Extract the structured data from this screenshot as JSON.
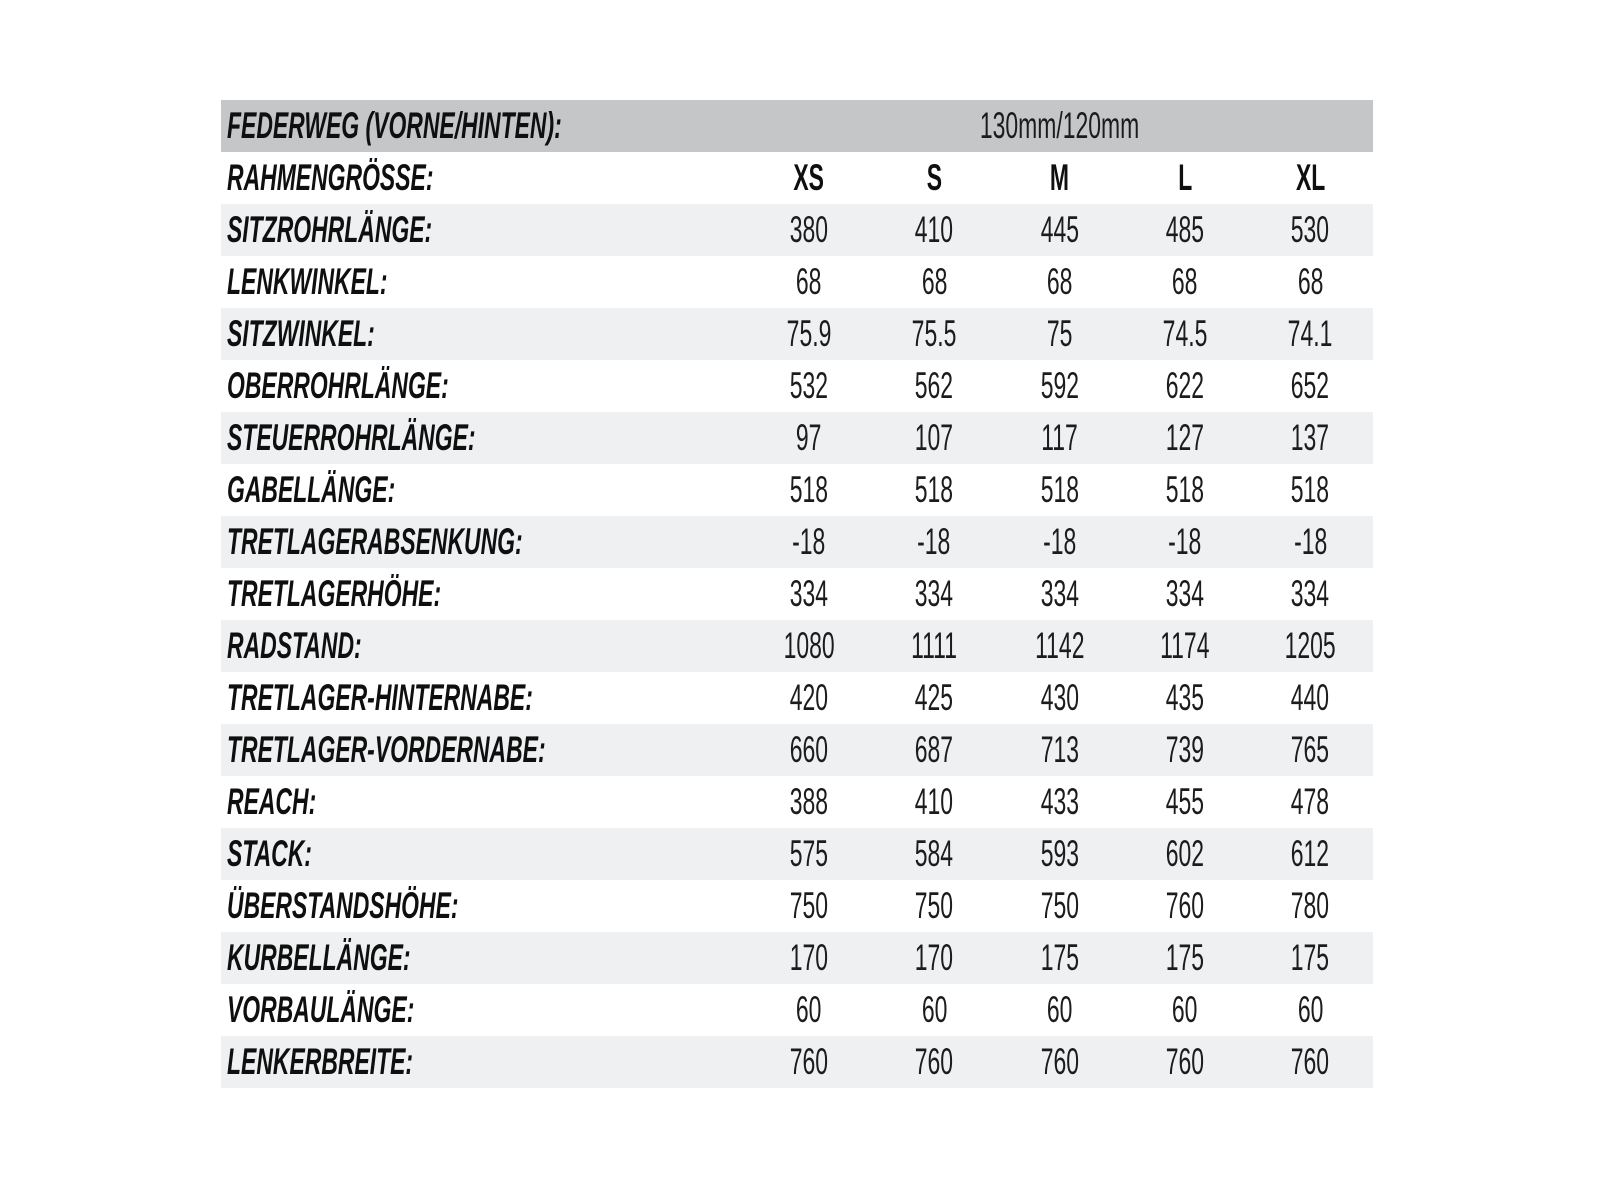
{
  "colors": {
    "header_bar_bg": "#c5c6c8",
    "stripe_bg": "#eff0f1",
    "row_bg": "#ffffff",
    "label_text": "#0f0f0f",
    "value_text": "#1c1c1c"
  },
  "chart_data": {
    "type": "table",
    "title": "Bike frame geometry specification table (German)",
    "header_row": {
      "label": "FEDERWEG (VORNE/HINTEN):",
      "value": "130mm/120mm"
    },
    "column_header": {
      "label": "RAHMENGRÖSSE:",
      "columns": [
        "XS",
        "S",
        "M",
        "L",
        "XL"
      ]
    },
    "rows": [
      {
        "label": "SITZROHRLÄNGE:",
        "values": [
          "380",
          "410",
          "445",
          "485",
          "530"
        ]
      },
      {
        "label": "LENKWINKEL:",
        "values": [
          "68",
          "68",
          "68",
          "68",
          "68"
        ]
      },
      {
        "label": "SITZWINKEL:",
        "values": [
          "75.9",
          "75.5",
          "75",
          "74.5",
          "74.1"
        ]
      },
      {
        "label": "OBERROHRLÄNGE:",
        "values": [
          "532",
          "562",
          "592",
          "622",
          "652"
        ]
      },
      {
        "label": "STEUERROHRLÄNGE:",
        "values": [
          "97",
          "107",
          "117",
          "127",
          "137"
        ]
      },
      {
        "label": "GABELLÄNGE:",
        "values": [
          "518",
          "518",
          "518",
          "518",
          "518"
        ]
      },
      {
        "label": "TRETLAGERABSENKUNG:",
        "values": [
          "-18",
          "-18",
          "-18",
          "-18",
          "-18"
        ]
      },
      {
        "label": "TRETLAGERHÖHE:",
        "values": [
          "334",
          "334",
          "334",
          "334",
          "334"
        ]
      },
      {
        "label": "RADSTAND:",
        "values": [
          "1080",
          "1111",
          "1142",
          "1174",
          "1205"
        ]
      },
      {
        "label": "TRETLAGER-HINTERNABE:",
        "values": [
          "420",
          "425",
          "430",
          "435",
          "440"
        ]
      },
      {
        "label": "TRETLAGER-VORDERNABE:",
        "values": [
          "660",
          "687",
          "713",
          "739",
          "765"
        ]
      },
      {
        "label": "REACH:",
        "values": [
          "388",
          "410",
          "433",
          "455",
          "478"
        ]
      },
      {
        "label": "STACK:",
        "values": [
          "575",
          "584",
          "593",
          "602",
          "612"
        ]
      },
      {
        "label": "ÜBERSTANDSHÖHE:",
        "values": [
          "750",
          "750",
          "750",
          "760",
          "780"
        ]
      },
      {
        "label": "KURBELLÄNGE:",
        "values": [
          "170",
          "170",
          "175",
          "175",
          "175"
        ]
      },
      {
        "label": "VORBAULÄNGE:",
        "values": [
          "60",
          "60",
          "60",
          "60",
          "60"
        ]
      },
      {
        "label": "LENKERBREITE:",
        "values": [
          "760",
          "760",
          "760",
          "760",
          "760"
        ]
      }
    ]
  }
}
